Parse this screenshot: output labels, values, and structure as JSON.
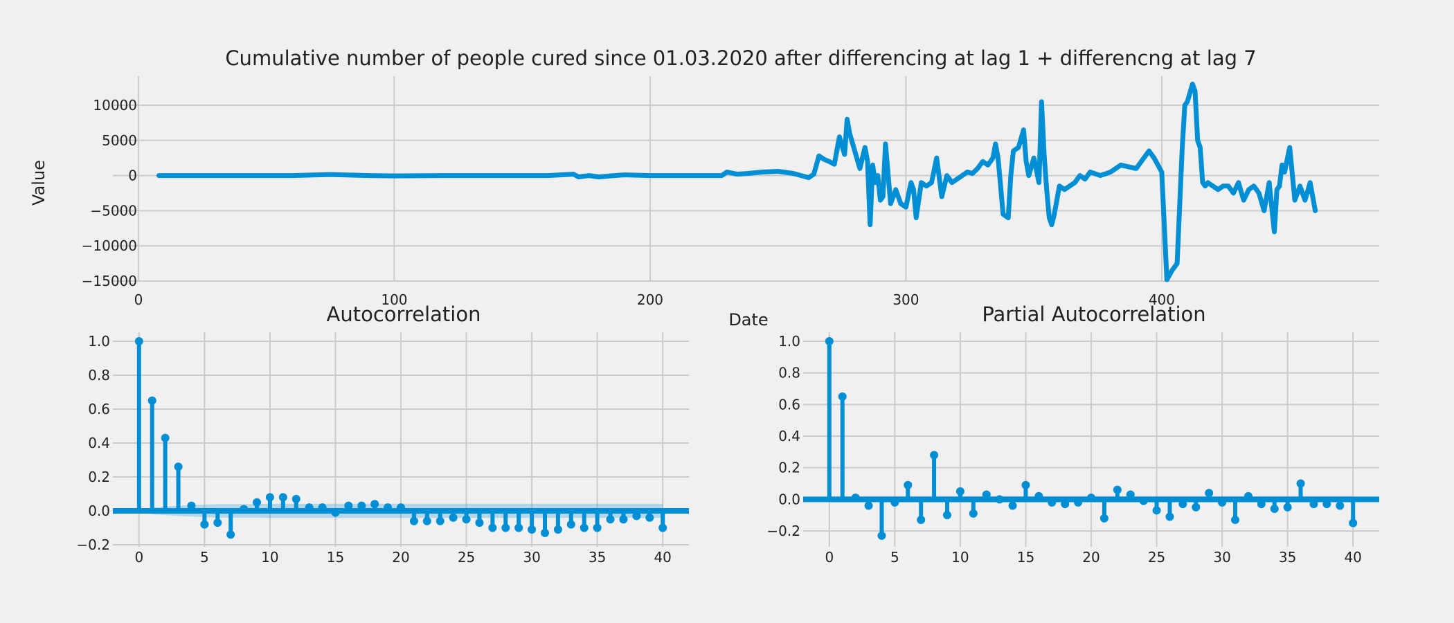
{
  "colors": {
    "background": "#f0f0f0",
    "line": "#008fd5",
    "band": "#008fd5",
    "grid": "#cbcbcb",
    "text": "#222222"
  },
  "chart_data": [
    {
      "type": "line",
      "title": "Cumulative number of people cured since 01.03.2020 after differencing at lag 1 + differencng at lag 7",
      "xlabel": "Date",
      "ylabel": "Value",
      "xlim": [
        -10,
        485
      ],
      "ylim": [
        -15000,
        15000
      ],
      "xticks": [
        "0",
        "100",
        "200",
        "300",
        "400"
      ],
      "yticks": [
        "10000",
        "5000",
        "0",
        "−5000",
        "−10000",
        "−15000"
      ],
      "grid": true,
      "series": [
        {
          "x": [
            8,
            40,
            60,
            70,
            75,
            80,
            90,
            100,
            120,
            140,
            160,
            170,
            172,
            176,
            180,
            186,
            190,
            200,
            210,
            220,
            228,
            230,
            234,
            238,
            244,
            250,
            256,
            262,
            264,
            266,
            268,
            270,
            272,
            274,
            276,
            277,
            278,
            280,
            282,
            284,
            285,
            286,
            287,
            288,
            289,
            290,
            291,
            292,
            294,
            296,
            298,
            300,
            302,
            303,
            304,
            306,
            308,
            310,
            312,
            314,
            316,
            318,
            320,
            322,
            324,
            326,
            328,
            330,
            332,
            334,
            335,
            336,
            338,
            340,
            341,
            342,
            344,
            346,
            347,
            348,
            350,
            352,
            353,
            354,
            355,
            356,
            357,
            358,
            360,
            362,
            364,
            366,
            368,
            370,
            372,
            376,
            380,
            384,
            390,
            395,
            397,
            400,
            402,
            404,
            406,
            408,
            409,
            410,
            412,
            413,
            414,
            415,
            416,
            417,
            418,
            420,
            422,
            424,
            426,
            428,
            430,
            432,
            434,
            436,
            438,
            440,
            442,
            444,
            445,
            446,
            447,
            448,
            450,
            452,
            453,
            454,
            456,
            458,
            460
          ],
          "values": [
            0,
            0,
            0,
            100,
            150,
            100,
            0,
            -50,
            0,
            0,
            0,
            200,
            -200,
            0,
            -200,
            0,
            100,
            0,
            0,
            0,
            0,
            500,
            200,
            300,
            500,
            600,
            300,
            -300,
            200,
            2800,
            2300,
            2000,
            1600,
            5500,
            3000,
            8000,
            6000,
            3500,
            1000,
            4000,
            2000,
            -7000,
            1500,
            -1000,
            0,
            -3500,
            -3000,
            4500,
            -4000,
            -2000,
            -4000,
            -4500,
            -1000,
            -2000,
            -6000,
            -1000,
            -1500,
            -1000,
            2500,
            -3000,
            0,
            -1000,
            -500,
            0,
            500,
            300,
            1000,
            2000,
            1500,
            2500,
            4500,
            2500,
            -5500,
            -6000,
            0,
            3500,
            4000,
            6500,
            2000,
            0,
            2500,
            -1000,
            10500,
            3000,
            -2000,
            -6000,
            -7000,
            -5500,
            -1500,
            -2000,
            -1500,
            -1000,
            0,
            -500,
            500,
            0,
            500,
            1500,
            1000,
            3500,
            2500,
            500,
            -14800,
            -13500,
            -12500,
            4000,
            10000,
            10500,
            13000,
            12000,
            5000,
            4000,
            -1000,
            -1500,
            -1000,
            -1500,
            -2000,
            -1500,
            -1500,
            -2500,
            -1000,
            -3500,
            -2000,
            -1500,
            -2500,
            -5000,
            -1000,
            -8000,
            -2000,
            -1500,
            1500,
            500,
            4000,
            -3500,
            -2500,
            -1500,
            -3500,
            -1000,
            -5000
          ]
        }
      ]
    },
    {
      "type": "stem",
      "title": "Autocorrelation",
      "xlim": [
        -2,
        42
      ],
      "ylim": [
        -0.2,
        1.0
      ],
      "xticks": [
        "0",
        "5",
        "10",
        "15",
        "20",
        "25",
        "30",
        "35",
        "40"
      ],
      "yticks": [
        "1.0",
        "0.8",
        "0.6",
        "0.4",
        "0.2",
        "0.0",
        "−0.2"
      ],
      "grid": true,
      "values": [
        1.0,
        0.65,
        0.43,
        0.26,
        0.03,
        -0.08,
        -0.07,
        -0.14,
        0.01,
        0.05,
        0.08,
        0.08,
        0.07,
        0.02,
        0.02,
        -0.01,
        0.03,
        0.03,
        0.04,
        0.02,
        0.02,
        -0.06,
        -0.06,
        -0.06,
        -0.04,
        -0.05,
        -0.07,
        -0.1,
        -0.1,
        -0.1,
        -0.11,
        -0.13,
        -0.11,
        -0.08,
        -0.1,
        -0.1,
        -0.05,
        -0.05,
        -0.03,
        -0.04,
        -0.1
      ],
      "confidence_band": {
        "upper": [
          0.0,
          0.02,
          0.025,
          0.03,
          0.034,
          0.037,
          0.04,
          0.04,
          0.04,
          0.04,
          0.042,
          0.042,
          0.042,
          0.042,
          0.042,
          0.042,
          0.042,
          0.042,
          0.042,
          0.042,
          0.042,
          0.042,
          0.042,
          0.042,
          0.042,
          0.042,
          0.042,
          0.042,
          0.042,
          0.042,
          0.042,
          0.042,
          0.042,
          0.042,
          0.042,
          0.042,
          0.042,
          0.042,
          0.042,
          0.042,
          0.042
        ]
      }
    },
    {
      "type": "stem",
      "title": "Partial Autocorrelation",
      "xlim": [
        -2,
        42
      ],
      "ylim": [
        -0.28,
        1.05
      ],
      "xticks": [
        "0",
        "5",
        "10",
        "15",
        "20",
        "25",
        "30",
        "35",
        "40"
      ],
      "yticks": [
        "1.0",
        "0.8",
        "0.6",
        "0.4",
        "0.2",
        "0.0",
        "−0.2"
      ],
      "grid": true,
      "values": [
        1.0,
        0.65,
        0.01,
        -0.04,
        -0.23,
        -0.02,
        0.09,
        -0.13,
        0.28,
        -0.1,
        0.05,
        -0.09,
        0.03,
        0.0,
        -0.04,
        0.09,
        0.02,
        -0.02,
        -0.03,
        -0.02,
        0.01,
        -0.12,
        0.06,
        0.03,
        -0.01,
        -0.07,
        -0.11,
        -0.03,
        -0.05,
        0.04,
        -0.02,
        -0.13,
        0.02,
        -0.03,
        -0.06,
        -0.05,
        0.1,
        -0.03,
        -0.03,
        -0.04,
        -0.15
      ],
      "confidence_band": {
        "upper": [
          0.02,
          0.02,
          0.02,
          0.02,
          0.02,
          0.02,
          0.02,
          0.02,
          0.02,
          0.02,
          0.02,
          0.02,
          0.02,
          0.02,
          0.02,
          0.02,
          0.02,
          0.02,
          0.02,
          0.02,
          0.02,
          0.02,
          0.02,
          0.02,
          0.02,
          0.02,
          0.02,
          0.02,
          0.02,
          0.02,
          0.02,
          0.02,
          0.02,
          0.02,
          0.02,
          0.02,
          0.02,
          0.02,
          0.02,
          0.02,
          0.02
        ]
      }
    }
  ]
}
